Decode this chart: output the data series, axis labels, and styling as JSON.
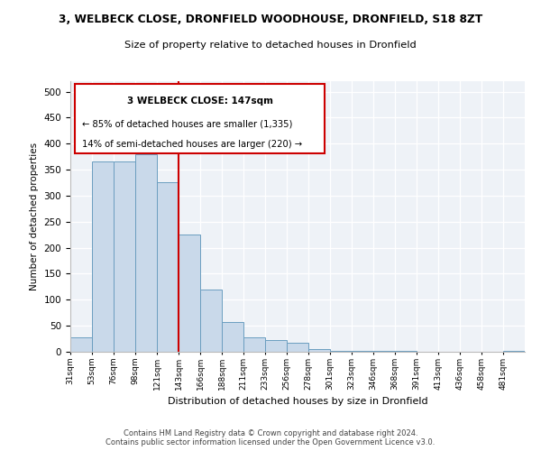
{
  "title": "3, WELBECK CLOSE, DRONFIELD WOODHOUSE, DRONFIELD, S18 8ZT",
  "subtitle": "Size of property relative to detached houses in Dronfield",
  "xlabel": "Distribution of detached houses by size in Dronfield",
  "ylabel": "Number of detached properties",
  "bar_values": [
    27,
    365,
    365,
    380,
    325,
    225,
    120,
    58,
    27,
    22,
    17,
    5,
    1,
    1,
    1,
    1,
    0,
    0,
    0,
    0,
    1
  ],
  "all_bar_labels": [
    "31sqm",
    "53sqm",
    "76sqm",
    "98sqm",
    "121sqm",
    "143sqm",
    "166sqm",
    "188sqm",
    "211sqm",
    "233sqm",
    "256sqm",
    "278sqm",
    "301sqm",
    "323sqm",
    "346sqm",
    "368sqm",
    "391sqm",
    "413sqm",
    "436sqm",
    "458sqm",
    "481sqm"
  ],
  "bar_color": "#c9d9ea",
  "bar_edge_color": "#6b9ec0",
  "red_line_x": 5,
  "annotation_text_line1": "3 WELBECK CLOSE: 147sqm",
  "annotation_text_line2": "← 85% of detached houses are smaller (1,335)",
  "annotation_text_line3": "14% of semi-detached houses are larger (220) →",
  "red_line_color": "#cc0000",
  "annotation_box_edge_color": "#cc0000",
  "footer_line1": "Contains HM Land Registry data © Crown copyright and database right 2024.",
  "footer_line2": "Contains public sector information licensed under the Open Government Licence v3.0.",
  "bg_color": "#eef2f7",
  "ylim": [
    0,
    520
  ],
  "yticks": [
    0,
    50,
    100,
    150,
    200,
    250,
    300,
    350,
    400,
    450,
    500
  ]
}
